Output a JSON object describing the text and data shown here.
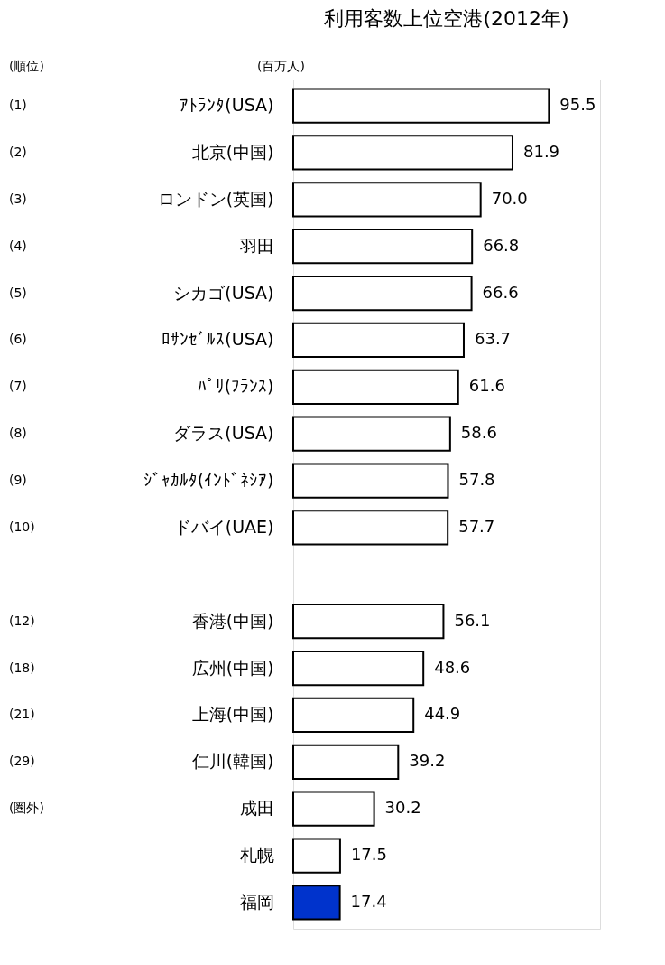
{
  "chart_data": {
    "type": "bar",
    "orientation": "horizontal",
    "title": "利用客数上位空港(2012年)",
    "grid": false,
    "value_labels": [
      "95.5",
      "81.9",
      "70.0",
      "66.8",
      "66.6",
      "63.7",
      "61.6",
      "58.6",
      "57.8",
      "57.7",
      null,
      "56.1",
      "48.6",
      "44.9",
      "39.2",
      "30.2",
      "17.5",
      "17.4"
    ],
    "categories": [
      "ｱﾄﾗﾝﾀ(USA)",
      "北京(中国)",
      "ロンドン(英国)",
      "羽田",
      "シカゴ(USA)",
      "ﾛｻﾝｾﾞﾙｽ(USA)",
      "ﾊﾟﾘ(ﾌﾗﾝｽ)",
      "ダラス(USA)",
      "ｼﾞｬｶﾙﾀ(ｲﾝﾄﾞﾈｼｱ)",
      "ドバイ(UAE)",
      null,
      "香港(中国)",
      "広州(中国)",
      "上海(中国)",
      "仁川(韓国)",
      "成田",
      "札幌",
      "福岡"
    ],
    "values": [
      95.5,
      81.9,
      70.0,
      66.8,
      66.6,
      63.7,
      61.6,
      58.6,
      57.8,
      57.7,
      null,
      56.1,
      48.6,
      44.9,
      39.2,
      30.2,
      17.5,
      17.4
    ],
    "colors": [
      "#ffffff",
      "#ffffff",
      "#ffffff",
      "#ffffff",
      "#ffffff",
      "#ffffff",
      "#ffffff",
      "#ffffff",
      "#ffffff",
      "#ffffff",
      "#ffffff",
      "#ffffff",
      "#ffffff",
      "#ffffff",
      "#ffffff",
      "#ffffff",
      "#ffffff",
      "#0033cc"
    ],
    "annotations": [
      "(順位)",
      "(百万人)",
      "(1)",
      "(2)",
      "(3)",
      "(4)",
      "(5)",
      "(6)",
      "(7)",
      "(8)",
      "(9)",
      "(10)",
      "(12)",
      "(18)",
      "(21)",
      "(29)",
      "(圏外)"
    ]
  }
}
